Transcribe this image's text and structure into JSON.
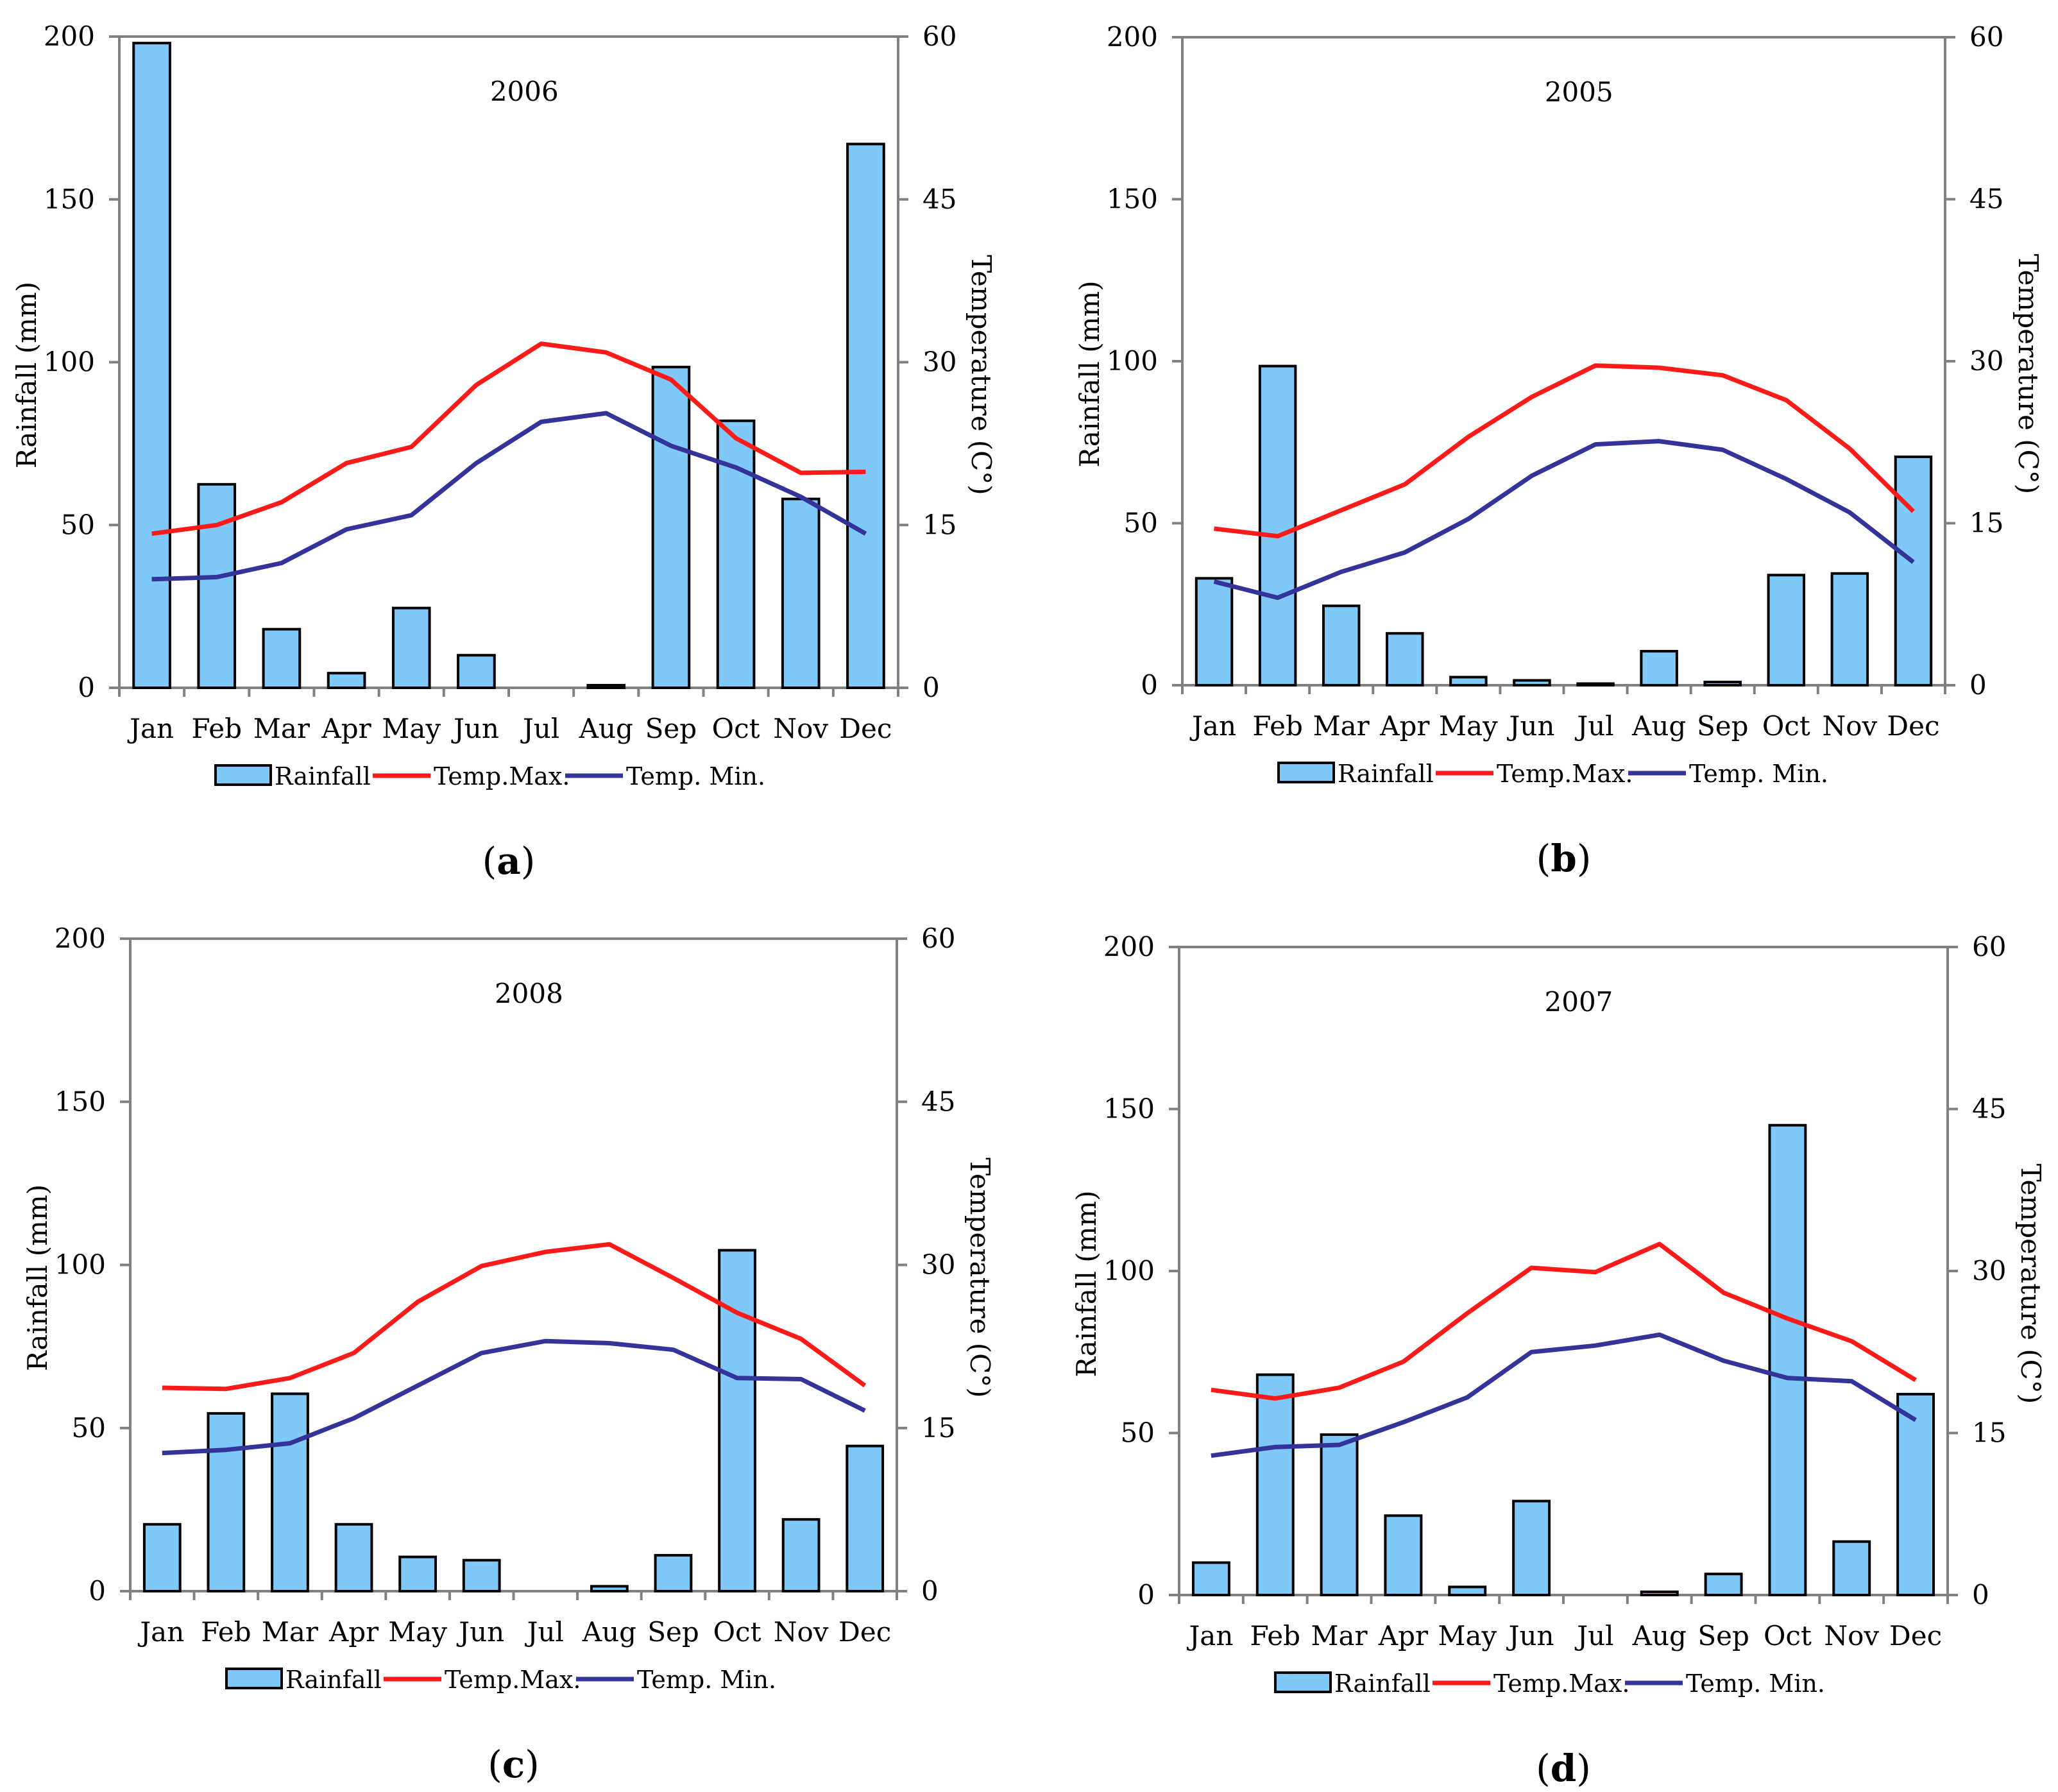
{
  "figure": {
    "legend": {
      "rainfall": "Rainfall",
      "temp_max": "Temp.Max.",
      "temp_min": "Temp. Min."
    },
    "colors": {
      "bar_fill": "#7ec8fa",
      "bar_stroke": "#000000",
      "temp_max": "#ff1a1a",
      "temp_min": "#333399",
      "axis": "#808080"
    }
  },
  "chart_data": [
    {
      "id": "a",
      "type": "bar",
      "panel_label": "a",
      "title": "2006",
      "categories": [
        "Jan",
        "Feb",
        "Mar",
        "Apr",
        "May",
        "Jun",
        "Jul",
        "Aug",
        "Sep",
        "Oct",
        "Nov",
        "Dec"
      ],
      "ylabel": "Rainfall (mm)",
      "y2label": "Temperature (C°)",
      "ylim": [
        0,
        200
      ],
      "y2lim": [
        0,
        60
      ],
      "yticks": [
        "0",
        "50",
        "100",
        "150",
        "200"
      ],
      "y2ticks": [
        "0",
        "15",
        "30",
        "45",
        "60"
      ],
      "series": [
        {
          "name": "Rainfall",
          "type": "bar",
          "axis": "left",
          "values": [
            198,
            62.5,
            18,
            4.5,
            24.5,
            10,
            0,
            0.8,
            98.5,
            82,
            58,
            167
          ]
        },
        {
          "name": "Temp.Max.",
          "type": "line",
          "axis": "right",
          "values": [
            14.2,
            15.0,
            17.1,
            20.7,
            22.2,
            27.9,
            31.7,
            30.9,
            28.4,
            23.0,
            19.8,
            19.9
          ]
        },
        {
          "name": "Temp. Min.",
          "type": "line",
          "axis": "right",
          "values": [
            10.0,
            10.2,
            11.5,
            14.6,
            15.9,
            20.7,
            24.5,
            25.3,
            22.3,
            20.3,
            17.6,
            14.2
          ]
        }
      ]
    },
    {
      "id": "b",
      "type": "bar",
      "panel_label": "b",
      "title": "2005",
      "categories": [
        "Jan",
        "Feb",
        "Mar",
        "Apr",
        "May",
        "Jun",
        "Jul",
        "Aug",
        "Sep",
        "Oct",
        "Nov",
        "Dec"
      ],
      "ylabel": "Rainfall (mm)",
      "y2label": "Temperature (C°)",
      "ylim": [
        0,
        200
      ],
      "y2lim": [
        0,
        60
      ],
      "yticks": [
        "0",
        "50",
        "100",
        "150",
        "200"
      ],
      "y2ticks": [
        "0",
        "15",
        "30",
        "45",
        "60"
      ],
      "series": [
        {
          "name": "Rainfall",
          "type": "bar",
          "axis": "left",
          "values": [
            33,
            98.5,
            24.5,
            16,
            2.5,
            1.5,
            0.5,
            10.5,
            1,
            34,
            34.5,
            70.5
          ]
        },
        {
          "name": "Temp.Max.",
          "type": "line",
          "axis": "right",
          "values": [
            14.5,
            13.8,
            16.2,
            18.6,
            23.0,
            26.7,
            29.6,
            29.4,
            28.7,
            26.4,
            21.9,
            16.1
          ]
        },
        {
          "name": "Temp. Min.",
          "type": "line",
          "axis": "right",
          "values": [
            9.6,
            8.1,
            10.5,
            12.3,
            15.4,
            19.4,
            22.3,
            22.6,
            21.8,
            19.1,
            16.0,
            11.4
          ]
        }
      ]
    },
    {
      "id": "c",
      "type": "bar",
      "panel_label": "c",
      "title": "2008",
      "categories": [
        "Jan",
        "Feb",
        "Mar",
        "Apr",
        "May",
        "Jun",
        "Jul",
        "Aug",
        "Sep",
        "Oct",
        "Nov",
        "Dec"
      ],
      "ylabel": "Rainfall (mm)",
      "y2label": "Temperature (C°)",
      "ylim": [
        0,
        200
      ],
      "y2lim": [
        0,
        60
      ],
      "yticks": [
        "0",
        "50",
        "100",
        "150",
        "200"
      ],
      "y2ticks": [
        "0",
        "15",
        "30",
        "45",
        "60"
      ],
      "series": [
        {
          "name": "Rainfall",
          "type": "bar",
          "axis": "left",
          "values": [
            20.5,
            54.5,
            60.5,
            20.5,
            10.5,
            9.5,
            0,
            1.5,
            11,
            104.5,
            22,
            44.5
          ]
        },
        {
          "name": "Temp.Max.",
          "type": "line",
          "axis": "right",
          "values": [
            18.7,
            18.6,
            19.6,
            21.9,
            26.6,
            29.9,
            31.2,
            31.9,
            28.8,
            25.6,
            23.2,
            18.9
          ]
        },
        {
          "name": "Temp. Min.",
          "type": "line",
          "axis": "right",
          "values": [
            12.7,
            13.0,
            13.6,
            15.9,
            18.9,
            21.9,
            23.0,
            22.8,
            22.2,
            19.6,
            19.5,
            16.6
          ]
        }
      ]
    },
    {
      "id": "d",
      "type": "bar",
      "panel_label": "d",
      "title": "2007",
      "categories": [
        "Jan",
        "Feb",
        "Mar",
        "Apr",
        "May",
        "Jun",
        "Jul",
        "Aug",
        "Sep",
        "Oct",
        "Nov",
        "Dec"
      ],
      "ylabel": "Rainfall (mm)",
      "y2label": "Temperature (C°)",
      "ylim": [
        0,
        200
      ],
      "y2lim": [
        0,
        60
      ],
      "yticks": [
        "0",
        "50",
        "100",
        "150",
        "200"
      ],
      "y2ticks": [
        "0",
        "15",
        "30",
        "45",
        "60"
      ],
      "series": [
        {
          "name": "Rainfall",
          "type": "bar",
          "axis": "left",
          "values": [
            10,
            68,
            49.5,
            24.5,
            2.5,
            29,
            0,
            1,
            6.5,
            145,
            16.5,
            62
          ]
        },
        {
          "name": "Temp.Max.",
          "type": "line",
          "axis": "right",
          "values": [
            19.0,
            18.2,
            19.2,
            21.6,
            26.1,
            30.3,
            29.9,
            32.5,
            28.0,
            25.6,
            23.5,
            19.9
          ]
        },
        {
          "name": "Temp. Min.",
          "type": "line",
          "axis": "right",
          "values": [
            12.9,
            13.7,
            13.9,
            16.0,
            18.3,
            22.5,
            23.1,
            24.1,
            21.7,
            20.1,
            19.8,
            16.2
          ]
        }
      ]
    }
  ]
}
